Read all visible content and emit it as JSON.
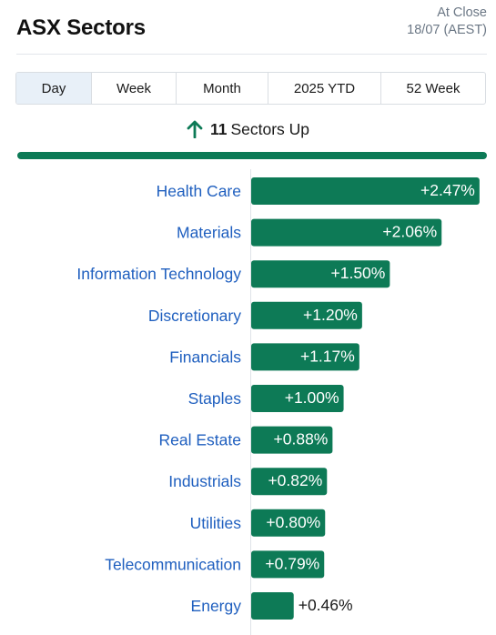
{
  "header": {
    "title": "ASX Sectors",
    "status_line1": "At Close",
    "status_line2": "18/07 (AEST)"
  },
  "tabs": [
    {
      "label": "Day",
      "active": true
    },
    {
      "label": "Week",
      "active": false
    },
    {
      "label": "Month",
      "active": false
    },
    {
      "label": "2025 YTD",
      "active": false
    },
    {
      "label": "52 Week",
      "active": false
    }
  ],
  "summary": {
    "count": "11",
    "text": "Sectors Up"
  },
  "colors": {
    "bar": "#0d7a56",
    "label": "#1f5fbf"
  },
  "chart_data": {
    "type": "bar",
    "orientation": "horizontal",
    "categories": [
      "Health Care",
      "Materials",
      "Information Technology",
      "Discretionary",
      "Financials",
      "Staples",
      "Real Estate",
      "Industrials",
      "Utilities",
      "Telecommunication",
      "Energy"
    ],
    "values": [
      2.47,
      2.06,
      1.5,
      1.2,
      1.17,
      1.0,
      0.88,
      0.82,
      0.8,
      0.79,
      0.46
    ],
    "labels": [
      "+2.47%",
      "+2.06%",
      "+1.50%",
      "+1.20%",
      "+1.17%",
      "+1.00%",
      "+0.88%",
      "+0.82%",
      "+0.80%",
      "+0.79%",
      "+0.46%"
    ],
    "xlim": [
      0,
      2.55
    ],
    "grid": false,
    "legend": "none"
  }
}
